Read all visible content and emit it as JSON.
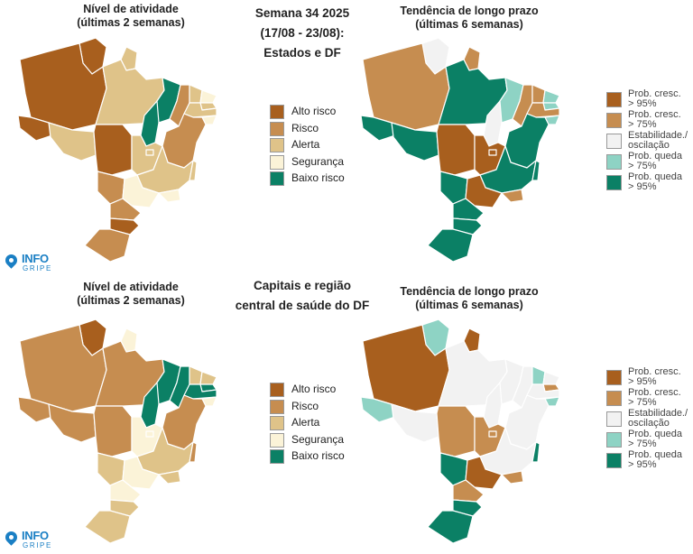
{
  "colors": {
    "alto_risco": "#A85F1E",
    "risco": "#C68D50",
    "alerta": "#DFC389",
    "seguranca": "#FBF3D8",
    "baixo_risco": "#0B8065",
    "prob_cresc_95": "#A85F1E",
    "prob_cresc_75": "#C68D50",
    "estabilidade": "#F2F2F2",
    "prob_queda_75": "#8ED3C4",
    "prob_queda_95": "#0B8065",
    "border": "#FFFFFF"
  },
  "top": {
    "left_title": "Nível de atividade\n(últimas 2 semanas)",
    "center_title": "Semana 34 2025\n(17/08 - 23/08):\nEstados e DF",
    "right_title": "Tendência de longo prazo\n(últimas 6 semanas)",
    "activity_map": {
      "AC": "alto_risco",
      "AM": "alto_risco",
      "RR": "alto_risco",
      "AP": "alerta",
      "PA": "alerta",
      "RO": "alerta",
      "MT": "alto_risco",
      "TO": "baixo_risco",
      "MA": "baixo_risco",
      "PI": "risco",
      "CE": "alerta",
      "RN": "seguranca",
      "PB": "alerta",
      "PE": "alerta",
      "AL": "seguranca",
      "SE": "alerta",
      "BA": "risco",
      "GO": "alerta",
      "DF": "alerta",
      "MS": "risco",
      "MG": "alerta",
      "ES": "alerta",
      "SP": "seguranca",
      "RJ": "seguranca",
      "PR": "risco",
      "SC": "alto_risco",
      "RS": "risco"
    },
    "trend_map": {
      "AC": "prob_queda_95",
      "AM": "prob_cresc_75",
      "RR": "estabilidade",
      "AP": "prob_cresc_75",
      "PA": "prob_queda_95",
      "RO": "prob_queda_95",
      "MT": "prob_cresc_95",
      "TO": "estabilidade",
      "MA": "prob_queda_75",
      "PI": "prob_cresc_75",
      "CE": "prob_cresc_75",
      "RN": "prob_queda_75",
      "PB": "prob_queda_75",
      "PE": "prob_cresc_75",
      "AL": "prob_queda_75",
      "SE": "prob_cresc_75",
      "BA": "prob_queda_95",
      "GO": "prob_cresc_95",
      "DF": "prob_cresc_95",
      "MS": "prob_queda_95",
      "MG": "prob_queda_95",
      "ES": "prob_queda_95",
      "SP": "prob_cresc_95",
      "RJ": "prob_cresc_75",
      "PR": "prob_queda_95",
      "SC": "prob_queda_95",
      "RS": "prob_queda_95"
    }
  },
  "bottom": {
    "left_title": "Nível de atividade\n(últimas 2 semanas)",
    "center_title": "Capitais e região\ncentral de saúde do DF",
    "right_title": "Tendência de longo prazo\n(últimas 6 semanas)",
    "activity_map": {
      "AC": "risco",
      "AM": "risco",
      "RR": "alto_risco",
      "AP": "seguranca",
      "PA": "risco",
      "RO": "risco",
      "MT": "risco",
      "TO": "baixo_risco",
      "MA": "baixo_risco",
      "PI": "baixo_risco",
      "CE": "alerta",
      "RN": "alerta",
      "PB": "baixo_risco",
      "PE": "baixo_risco",
      "AL": "seguranca",
      "SE": "alerta",
      "BA": "risco",
      "GO": "seguranca",
      "DF": "seguranca",
      "MS": "alerta",
      "MG": "alerta",
      "ES": "risco",
      "SP": "seguranca",
      "RJ": "alerta",
      "PR": "seguranca",
      "SC": "alerta",
      "RS": "alerta"
    },
    "trend_map": {
      "AC": "prob_queda_75",
      "AM": "prob_cresc_95",
      "RR": "prob_queda_75",
      "AP": "prob_cresc_95",
      "PA": "estabilidade",
      "RO": "estabilidade",
      "MT": "prob_cresc_75",
      "TO": "estabilidade",
      "MA": "estabilidade",
      "PI": "estabilidade",
      "CE": "prob_queda_75",
      "RN": "estabilidade",
      "PB": "prob_cresc_75",
      "PE": "estabilidade",
      "AL": "prob_queda_75",
      "SE": "estabilidade",
      "BA": "estabilidade",
      "GO": "prob_cresc_75",
      "DF": "prob_cresc_75",
      "MS": "prob_queda_95",
      "MG": "estabilidade",
      "ES": "prob_queda_95",
      "SP": "prob_cresc_95",
      "RJ": "prob_cresc_75",
      "PR": "prob_cresc_75",
      "SC": "prob_queda_95",
      "RS": "prob_queda_95"
    }
  },
  "legend_activity": [
    {
      "key": "alto_risco",
      "label": "Alto risco"
    },
    {
      "key": "risco",
      "label": "Risco"
    },
    {
      "key": "alerta",
      "label": "Alerta"
    },
    {
      "key": "seguranca",
      "label": "Segurança"
    },
    {
      "key": "baixo_risco",
      "label": "Baixo risco"
    }
  ],
  "legend_trend": [
    {
      "key": "prob_cresc_95",
      "label": "Prob. cresc.\n> 95%"
    },
    {
      "key": "prob_cresc_75",
      "label": "Prob. cresc.\n> 75%"
    },
    {
      "key": "estabilidade",
      "label": "Estabilidade./\noscilação"
    },
    {
      "key": "prob_queda_75",
      "label": "Prob. queda\n> 75%"
    },
    {
      "key": "prob_queda_95",
      "label": "Prob. queda\n> 95%"
    }
  ],
  "logo": {
    "word1": "INFO",
    "word2": "GRIPE"
  }
}
